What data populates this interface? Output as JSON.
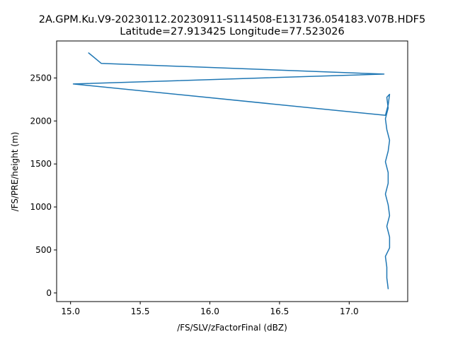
{
  "chart_data": {
    "type": "line",
    "title": "2A.GPM.Ku.V9-20230112.20230911-S114508-E131736.054183.V07B.HDF5",
    "subtitle": "Latitude=27.913425 Longitude=77.523026",
    "xlabel": "/FS/SLV/zFactorFinal (dBZ)",
    "ylabel": "/FS/PRE/height (m)",
    "xlim": [
      14.9,
      17.42
    ],
    "ylim": [
      -100,
      2930
    ],
    "xticks": [
      15.0,
      15.5,
      16.0,
      16.5,
      17.0
    ],
    "xtick_labels": [
      "15.0",
      "15.5",
      "16.0",
      "16.5",
      "17.0"
    ],
    "yticks": [
      0,
      500,
      1000,
      1500,
      2000,
      2500
    ],
    "ytick_labels": [
      "0",
      "500",
      "1000",
      "1500",
      "2000",
      "2500"
    ],
    "grid": false,
    "color": "#1f77b4",
    "series": [
      {
        "x": [
          17.28,
          17.27,
          17.27,
          17.26,
          17.29,
          17.29,
          17.27,
          17.29,
          17.28,
          17.26,
          17.28,
          17.28,
          17.26,
          17.28,
          17.29,
          17.27,
          17.26,
          17.28,
          17.27,
          17.29,
          17.28,
          17.26,
          15.02,
          17.25,
          15.22,
          15.13
        ],
        "y": [
          50,
          175,
          300,
          425,
          525,
          650,
          775,
          900,
          1025,
          1150,
          1275,
          1400,
          1525,
          1650,
          1775,
          1900,
          2025,
          2150,
          2275,
          2310,
          2185,
          2065,
          2430,
          2545,
          2670,
          2790
        ]
      }
    ]
  }
}
